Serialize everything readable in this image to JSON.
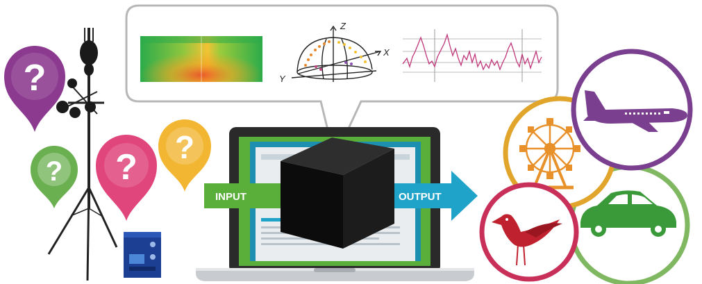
{
  "arrows": {
    "input_label": "INPUT",
    "output_label": "OUTPUT",
    "input_color": "#5aae3a",
    "output_color": "#1fa3c8"
  },
  "bubble": {
    "axis_z": "Z",
    "axis_x": "X",
    "axis_y": "Y",
    "panels": [
      "spectrogram",
      "3d-sphere-plot",
      "time-series-line-plot"
    ]
  },
  "question_pins": [
    {
      "symbol": "?",
      "color": "#8b3a8f"
    },
    {
      "symbol": "?",
      "color": "#6bb050"
    },
    {
      "symbol": "?",
      "color": "#e0457b"
    },
    {
      "symbol": "?",
      "color": "#f2b632"
    }
  ],
  "categories": [
    {
      "icon": "airplane-icon",
      "color": "#7a3f8f"
    },
    {
      "icon": "ferris-wheel-icon",
      "color": "#e0a52a"
    },
    {
      "icon": "car-icon",
      "color": "#3a9a3a"
    },
    {
      "icon": "bird-icon",
      "color": "#c8305a"
    }
  ],
  "colors": {
    "laptop_body": "#2a2a2a",
    "laptop_base": "#c8ccd0",
    "screen_green": "#5aae3a",
    "cube": "#111111"
  }
}
